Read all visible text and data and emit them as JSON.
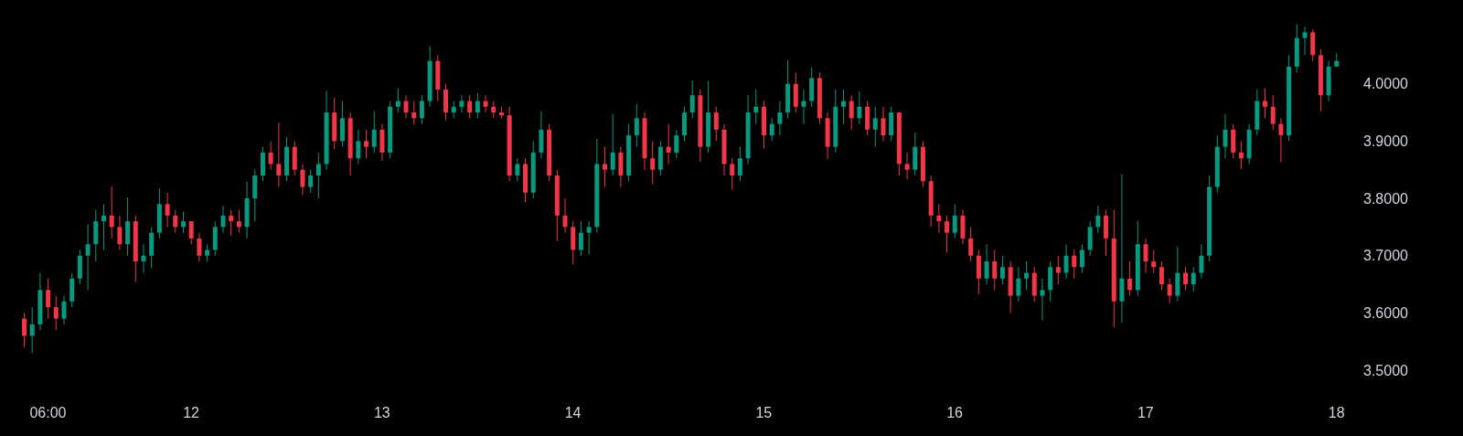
{
  "chart_data": {
    "type": "candlestick",
    "categories": [
      null,
      null,
      null,
      "06:00",
      null,
      null,
      null,
      null,
      null,
      null,
      null,
      null,
      null,
      null,
      null,
      null,
      null,
      null,
      null,
      null,
      null,
      "12",
      null,
      null,
      null,
      null,
      null,
      null,
      null,
      null,
      null,
      null,
      null,
      null,
      null,
      null,
      null,
      null,
      null,
      null,
      null,
      null,
      null,
      null,
      null,
      "13",
      null,
      null,
      null,
      null,
      null,
      null,
      null,
      null,
      null,
      null,
      null,
      null,
      null,
      null,
      null,
      null,
      null,
      null,
      null,
      null,
      null,
      null,
      null,
      "14",
      null,
      null,
      null,
      null,
      null,
      null,
      null,
      null,
      null,
      null,
      null,
      null,
      null,
      null,
      null,
      null,
      null,
      null,
      null,
      null,
      null,
      null,
      null,
      "15",
      null,
      null,
      null,
      null,
      null,
      null,
      null,
      null,
      null,
      null,
      null,
      null,
      null,
      null,
      null,
      null,
      null,
      null,
      null,
      null,
      null,
      null,
      null,
      "16",
      null,
      null,
      null,
      null,
      null,
      null,
      null,
      null,
      null,
      null,
      null,
      null,
      null,
      null,
      null,
      null,
      null,
      null,
      null,
      null,
      null,
      null,
      null,
      "17",
      null,
      null,
      null,
      null,
      null,
      null,
      null,
      null,
      null,
      null,
      null,
      null,
      null,
      null,
      null,
      null,
      null,
      null,
      null,
      null,
      null,
      null,
      null,
      "18"
    ],
    "ohlc": [
      [
        3.59,
        3.6,
        3.54,
        3.56
      ],
      [
        3.56,
        3.61,
        3.53,
        3.58
      ],
      [
        3.58,
        3.67,
        3.57,
        3.64
      ],
      [
        3.64,
        3.66,
        3.59,
        3.61
      ],
      [
        3.61,
        3.63,
        3.57,
        3.59
      ],
      [
        3.59,
        3.63,
        3.58,
        3.62
      ],
      [
        3.62,
        3.67,
        3.61,
        3.66
      ],
      [
        3.66,
        3.71,
        3.65,
        3.7
      ],
      [
        3.7,
        3.755,
        3.64,
        3.72
      ],
      [
        3.72,
        3.78,
        3.69,
        3.76
      ],
      [
        3.76,
        3.79,
        3.71,
        3.77
      ],
      [
        3.77,
        3.821,
        3.73,
        3.75
      ],
      [
        3.75,
        3.77,
        3.71,
        3.72
      ],
      [
        3.72,
        3.802,
        3.7,
        3.76
      ],
      [
        3.76,
        3.77,
        3.654,
        3.69
      ],
      [
        3.69,
        3.72,
        3.67,
        3.7
      ],
      [
        3.7,
        3.75,
        3.678,
        3.74
      ],
      [
        3.74,
        3.817,
        3.73,
        3.79
      ],
      [
        3.79,
        3.81,
        3.75,
        3.77
      ],
      [
        3.77,
        3.78,
        3.74,
        3.75
      ],
      [
        3.75,
        3.777,
        3.74,
        3.76
      ],
      [
        3.76,
        3.76,
        3.72,
        3.73
      ],
      [
        3.73,
        3.74,
        3.69,
        3.7
      ],
      [
        3.7,
        3.72,
        3.689,
        3.71
      ],
      [
        3.71,
        3.76,
        3.7,
        3.75
      ],
      [
        3.75,
        3.787,
        3.74,
        3.77
      ],
      [
        3.77,
        3.78,
        3.735,
        3.76
      ],
      [
        3.76,
        3.78,
        3.74,
        3.75
      ],
      [
        3.75,
        3.829,
        3.73,
        3.8
      ],
      [
        3.8,
        3.85,
        3.76,
        3.84
      ],
      [
        3.84,
        3.89,
        3.83,
        3.88
      ],
      [
        3.88,
        3.9,
        3.85,
        3.86
      ],
      [
        3.86,
        3.932,
        3.82,
        3.84
      ],
      [
        3.84,
        3.907,
        3.83,
        3.89
      ],
      [
        3.89,
        3.9,
        3.84,
        3.85
      ],
      [
        3.85,
        3.86,
        3.806,
        3.82
      ],
      [
        3.82,
        3.85,
        3.81,
        3.84
      ],
      [
        3.84,
        3.88,
        3.8,
        3.86
      ],
      [
        3.86,
        3.988,
        3.85,
        3.95
      ],
      [
        3.95,
        3.976,
        3.886,
        3.9
      ],
      [
        3.9,
        3.97,
        3.89,
        3.94
      ],
      [
        3.94,
        3.95,
        3.84,
        3.87
      ],
      [
        3.87,
        3.92,
        3.86,
        3.9
      ],
      [
        3.9,
        3.92,
        3.87,
        3.89
      ],
      [
        3.89,
        3.952,
        3.88,
        3.92
      ],
      [
        3.92,
        3.93,
        3.866,
        3.88
      ],
      [
        3.88,
        3.97,
        3.87,
        3.96
      ],
      [
        3.96,
        3.992,
        3.95,
        3.97
      ],
      [
        3.97,
        3.98,
        3.94,
        3.95
      ],
      [
        3.95,
        3.97,
        3.928,
        3.94
      ],
      [
        3.94,
        3.98,
        3.93,
        3.97
      ],
      [
        3.97,
        4.066,
        3.96,
        4.04
      ],
      [
        4.04,
        4.05,
        3.97,
        3.99
      ],
      [
        3.99,
        4.0,
        3.936,
        3.95
      ],
      [
        3.95,
        3.97,
        3.94,
        3.96
      ],
      [
        3.96,
        3.98,
        3.95,
        3.97
      ],
      [
        3.97,
        3.98,
        3.94,
        3.95
      ],
      [
        3.95,
        3.984,
        3.94,
        3.97
      ],
      [
        3.97,
        3.98,
        3.95,
        3.96
      ],
      [
        3.96,
        3.97,
        3.94,
        3.95
      ],
      [
        3.95,
        3.96,
        3.939,
        3.945
      ],
      [
        3.945,
        3.96,
        3.83,
        3.84
      ],
      [
        3.84,
        3.87,
        3.83,
        3.86
      ],
      [
        3.86,
        3.87,
        3.793,
        3.81
      ],
      [
        3.81,
        3.9,
        3.8,
        3.88
      ],
      [
        3.88,
        3.952,
        3.87,
        3.92
      ],
      [
        3.92,
        3.93,
        3.83,
        3.84
      ],
      [
        3.84,
        3.85,
        3.726,
        3.77
      ],
      [
        3.77,
        3.8,
        3.74,
        3.75
      ],
      [
        3.75,
        3.76,
        3.685,
        3.71
      ],
      [
        3.71,
        3.76,
        3.7,
        3.74
      ],
      [
        3.74,
        3.76,
        3.702,
        3.75
      ],
      [
        3.75,
        3.904,
        3.74,
        3.86
      ],
      [
        3.86,
        3.89,
        3.82,
        3.85
      ],
      [
        3.85,
        3.947,
        3.84,
        3.88
      ],
      [
        3.88,
        3.89,
        3.82,
        3.84
      ],
      [
        3.84,
        3.93,
        3.83,
        3.91
      ],
      [
        3.91,
        3.965,
        3.89,
        3.94
      ],
      [
        3.94,
        3.95,
        3.85,
        3.87
      ],
      [
        3.87,
        3.9,
        3.825,
        3.85
      ],
      [
        3.85,
        3.9,
        3.84,
        3.89
      ],
      [
        3.89,
        3.93,
        3.86,
        3.88
      ],
      [
        3.88,
        3.92,
        3.87,
        3.91
      ],
      [
        3.91,
        3.96,
        3.9,
        3.95
      ],
      [
        3.95,
        4.006,
        3.94,
        3.98
      ],
      [
        3.98,
        3.99,
        3.864,
        3.89
      ],
      [
        3.89,
        4.005,
        3.88,
        3.95
      ],
      [
        3.95,
        3.96,
        3.9,
        3.92
      ],
      [
        3.92,
        3.93,
        3.84,
        3.86
      ],
      [
        3.86,
        3.87,
        3.815,
        3.84
      ],
      [
        3.84,
        3.89,
        3.83,
        3.87
      ],
      [
        3.87,
        3.98,
        3.86,
        3.95
      ],
      [
        3.95,
        3.99,
        3.93,
        3.96
      ],
      [
        3.96,
        3.97,
        3.887,
        3.91
      ],
      [
        3.91,
        3.94,
        3.9,
        3.93
      ],
      [
        3.93,
        3.97,
        3.91,
        3.95
      ],
      [
        3.95,
        4.041,
        3.94,
        4.0
      ],
      [
        4.0,
        4.02,
        3.95,
        3.96
      ],
      [
        3.96,
        3.99,
        3.93,
        3.97
      ],
      [
        3.97,
        4.029,
        3.96,
        4.01
      ],
      [
        4.01,
        4.02,
        3.93,
        3.94
      ],
      [
        3.94,
        3.95,
        3.869,
        3.89
      ],
      [
        3.89,
        3.99,
        3.88,
        3.96
      ],
      [
        3.96,
        3.99,
        3.93,
        3.97
      ],
      [
        3.97,
        3.98,
        3.92,
        3.94
      ],
      [
        3.94,
        3.987,
        3.93,
        3.96
      ],
      [
        3.96,
        3.97,
        3.91,
        3.92
      ],
      [
        3.92,
        3.96,
        3.89,
        3.94
      ],
      [
        3.94,
        3.96,
        3.9,
        3.91
      ],
      [
        3.91,
        3.96,
        3.9,
        3.95
      ],
      [
        3.95,
        3.95,
        3.84,
        3.86
      ],
      [
        3.86,
        3.88,
        3.833,
        3.85
      ],
      [
        3.85,
        3.915,
        3.84,
        3.89
      ],
      [
        3.89,
        3.9,
        3.82,
        3.83
      ],
      [
        3.83,
        3.84,
        3.75,
        3.77
      ],
      [
        3.77,
        3.79,
        3.74,
        3.76
      ],
      [
        3.76,
        3.77,
        3.705,
        3.74
      ],
      [
        3.74,
        3.79,
        3.73,
        3.77
      ],
      [
        3.77,
        3.78,
        3.72,
        3.73
      ],
      [
        3.73,
        3.75,
        3.69,
        3.7
      ],
      [
        3.7,
        3.71,
        3.633,
        3.66
      ],
      [
        3.66,
        3.72,
        3.65,
        3.69
      ],
      [
        3.69,
        3.71,
        3.64,
        3.66
      ],
      [
        3.66,
        3.7,
        3.65,
        3.68
      ],
      [
        3.68,
        3.69,
        3.6,
        3.63
      ],
      [
        3.63,
        3.68,
        3.62,
        3.66
      ],
      [
        3.66,
        3.69,
        3.64,
        3.67
      ],
      [
        3.67,
        3.68,
        3.62,
        3.63
      ],
      [
        3.63,
        3.66,
        3.587,
        3.64
      ],
      [
        3.64,
        3.69,
        3.62,
        3.68
      ],
      [
        3.68,
        3.7,
        3.65,
        3.67
      ],
      [
        3.67,
        3.72,
        3.66,
        3.7
      ],
      [
        3.7,
        3.71,
        3.66,
        3.68
      ],
      [
        3.68,
        3.72,
        3.67,
        3.71
      ],
      [
        3.71,
        3.76,
        3.7,
        3.75
      ],
      [
        3.75,
        3.787,
        3.74,
        3.77
      ],
      [
        3.77,
        3.78,
        3.7,
        3.73
      ],
      [
        3.73,
        3.78,
        3.575,
        3.62
      ],
      [
        3.62,
        3.843,
        3.583,
        3.66
      ],
      [
        3.66,
        3.69,
        3.63,
        3.64
      ],
      [
        3.64,
        3.761,
        3.63,
        3.72
      ],
      [
        3.72,
        3.73,
        3.67,
        3.69
      ],
      [
        3.69,
        3.71,
        3.67,
        3.68
      ],
      [
        3.68,
        3.69,
        3.64,
        3.65
      ],
      [
        3.65,
        3.66,
        3.617,
        3.63
      ],
      [
        3.63,
        3.716,
        3.62,
        3.67
      ],
      [
        3.67,
        3.68,
        3.64,
        3.65
      ],
      [
        3.65,
        3.68,
        3.638,
        3.67
      ],
      [
        3.67,
        3.72,
        3.66,
        3.7
      ],
      [
        3.7,
        3.84,
        3.69,
        3.82
      ],
      [
        3.82,
        3.91,
        3.81,
        3.89
      ],
      [
        3.89,
        3.947,
        3.87,
        3.92
      ],
      [
        3.92,
        3.93,
        3.87,
        3.88
      ],
      [
        3.88,
        3.9,
        3.851,
        3.87
      ],
      [
        3.87,
        3.93,
        3.86,
        3.92
      ],
      [
        3.92,
        3.99,
        3.91,
        3.97
      ],
      [
        3.97,
        3.992,
        3.94,
        3.96
      ],
      [
        3.96,
        3.98,
        3.92,
        3.93
      ],
      [
        3.93,
        3.94,
        3.863,
        3.91
      ],
      [
        3.91,
        4.05,
        3.9,
        4.03
      ],
      [
        4.03,
        4.104,
        4.02,
        4.08
      ],
      [
        4.08,
        4.1,
        4.05,
        4.09
      ],
      [
        4.09,
        4.095,
        4.04,
        4.05
      ],
      [
        4.05,
        4.06,
        3.952,
        3.98
      ],
      [
        3.98,
        4.04,
        3.97,
        4.03
      ],
      [
        4.03,
        4.053,
        4.03,
        4.04
      ]
    ],
    "colors": [
      "#f23645",
      "#089981",
      "#089981",
      "#f23645",
      "#f23645",
      "#089981",
      "#089981",
      "#089981",
      "#089981",
      "#089981",
      "#089981",
      "#f23645",
      "#f23645",
      "#089981",
      "#f23645",
      "#089981",
      "#089981",
      "#089981",
      "#f23645",
      "#f23645",
      "#089981",
      "#f23645",
      "#f23645",
      "#089981",
      "#089981",
      "#089981",
      "#f23645",
      "#f23645",
      "#089981",
      "#089981",
      "#089981",
      "#f23645",
      "#f23645",
      "#089981",
      "#f23645",
      "#f23645",
      "#089981",
      "#089981",
      "#089981",
      "#f23645",
      "#089981",
      "#f23645",
      "#089981",
      "#f23645",
      "#089981",
      "#f23645",
      "#089981",
      "#089981",
      "#f23645",
      "#f23645",
      "#089981",
      "#089981",
      "#f23645",
      "#f23645",
      "#089981",
      "#089981",
      "#f23645",
      "#089981",
      "#f23645",
      "#f23645",
      "#f23645",
      "#f23645",
      "#089981",
      "#f23645",
      "#089981",
      "#089981",
      "#f23645",
      "#f23645",
      "#f23645",
      "#f23645",
      "#089981",
      "#089981",
      "#089981",
      "#f23645",
      "#089981",
      "#f23645",
      "#089981",
      "#089981",
      "#f23645",
      "#f23645",
      "#089981",
      "#f23645",
      "#089981",
      "#089981",
      "#089981",
      "#f23645",
      "#089981",
      "#f23645",
      "#f23645",
      "#f23645",
      "#089981",
      "#089981",
      "#089981",
      "#f23645",
      "#089981",
      "#089981",
      "#089981",
      "#f23645",
      "#089981",
      "#089981",
      "#f23645",
      "#f23645",
      "#089981",
      "#089981",
      "#f23645",
      "#089981",
      "#f23645",
      "#089981",
      "#f23645",
      "#089981",
      "#f23645",
      "#f23645",
      "#089981",
      "#f23645",
      "#f23645",
      "#f23645",
      "#f23645",
      "#089981",
      "#f23645",
      "#f23645",
      "#f23645",
      "#089981",
      "#f23645",
      "#089981",
      "#f23645",
      "#089981",
      "#089981",
      "#f23645",
      "#089981",
      "#089981",
      "#f23645",
      "#089981",
      "#f23645",
      "#089981",
      "#089981",
      "#089981",
      "#f23645",
      "#f23645",
      "#089981",
      "#f23645",
      "#089981",
      "#f23645",
      "#f23645",
      "#f23645",
      "#f23645",
      "#089981",
      "#f23645",
      "#089981",
      "#089981",
      "#089981",
      "#089981",
      "#089981",
      "#f23645",
      "#f23645",
      "#089981",
      "#089981",
      "#f23645",
      "#f23645",
      "#f23645",
      "#089981",
      "#089981",
      "#089981",
      "#f23645",
      "#f23645",
      "#089981",
      "#089981"
    ],
    "ylim": [
      3.5,
      4.14
    ],
    "yticks": [
      {
        "value": 3.5,
        "label": "3.5000"
      },
      {
        "value": 3.6,
        "label": "3.6000"
      },
      {
        "value": 3.7,
        "label": "3.7000"
      },
      {
        "value": 3.8,
        "label": "3.8000"
      },
      {
        "value": 3.9,
        "label": "3.9000"
      },
      {
        "value": 4.0,
        "label": "4.0000"
      }
    ]
  }
}
